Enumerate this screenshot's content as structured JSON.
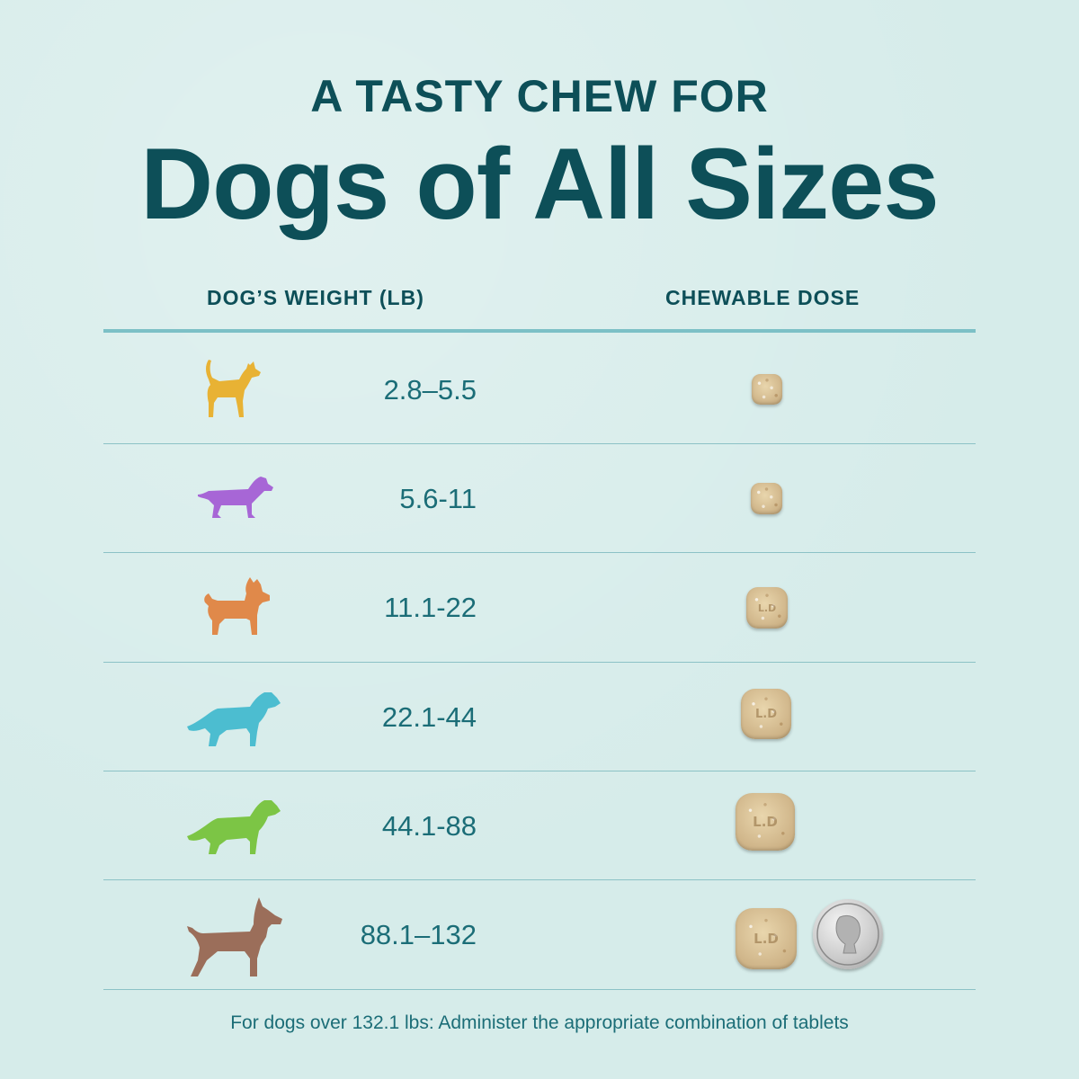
{
  "header": {
    "title_top": "A TASTY CHEW FOR",
    "title_main": "Dogs of All Sizes"
  },
  "table": {
    "columns": [
      "DOG’S WEIGHT (LB)",
      "CHEWABLE DOSE"
    ],
    "rows": [
      {
        "weight": "2.8–5.5",
        "dog_icon": "small-dog-icon",
        "color": "#e8b234"
      },
      {
        "weight": "5.6-11",
        "dog_icon": "dachshund-icon",
        "color": "#a766d6"
      },
      {
        "weight": "11.1-22",
        "dog_icon": "terrier-icon",
        "color": "#e0894a"
      },
      {
        "weight": "22.1-44",
        "dog_icon": "medium-dog-icon",
        "color": "#4cbdd0"
      },
      {
        "weight": "44.1-88",
        "dog_icon": "large-dog-icon",
        "color": "#7cc545"
      },
      {
        "weight": "88.1–132",
        "dog_icon": "great-dane-icon",
        "color": "#9b6e5a"
      }
    ]
  },
  "footnote": "For dogs over 132.1 lbs: Administer the appropriate combination of tablets"
}
